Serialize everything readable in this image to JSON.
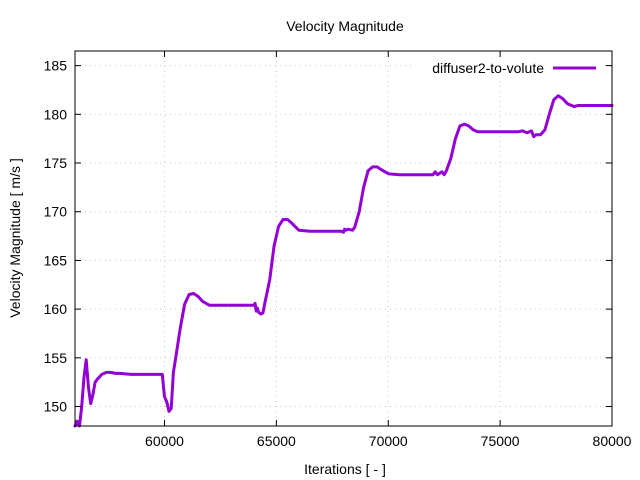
{
  "chart_data": {
    "type": "line",
    "title": "Velocity Magnitude",
    "xlabel": "Iterations [ - ]",
    "ylabel": "Velocity Magnitude [ m/s ]",
    "xlim": [
      56000,
      80000
    ],
    "ylim": [
      148,
      186.5
    ],
    "xticks": [
      60000,
      65000,
      70000,
      75000,
      80000
    ],
    "yticks": [
      150,
      155,
      160,
      165,
      170,
      175,
      180,
      185
    ],
    "grid": true,
    "legend_position": "top-right",
    "series": [
      {
        "name": "diffuser2-to-volute",
        "color": "#9400d3",
        "x": [
          56000,
          56100,
          56200,
          56300,
          56400,
          56500,
          56600,
          56700,
          56800,
          56900,
          57000,
          57200,
          57400,
          57600,
          57800,
          58000,
          58500,
          59000,
          59500,
          59900,
          60000,
          60100,
          60200,
          60300,
          60400,
          60500,
          60700,
          60900,
          61100,
          61300,
          61500,
          61700,
          62000,
          62500,
          63000,
          63500,
          64000,
          64050,
          64100,
          64150,
          64200,
          64300,
          64400,
          64500,
          64700,
          64900,
          65100,
          65300,
          65500,
          65700,
          66000,
          66500,
          67000,
          67500,
          67900,
          68000,
          68050,
          68100,
          68200,
          68400,
          68500,
          68700,
          68900,
          69100,
          69300,
          69500,
          69700,
          70000,
          70500,
          71000,
          71500,
          72000,
          72100,
          72200,
          72400,
          72500,
          72600,
          72800,
          73000,
          73200,
          73400,
          73600,
          73800,
          74000,
          74500,
          75000,
          75500,
          75800,
          76000,
          76200,
          76400,
          76500,
          76600,
          76800,
          77000,
          77200,
          77400,
          77600,
          77800,
          78000,
          78300,
          78500,
          79000,
          79500,
          80000
        ],
        "values": [
          148,
          148.5,
          148,
          150,
          153,
          154.8,
          152,
          150.3,
          151.2,
          152.5,
          152.8,
          153.3,
          153.5,
          153.5,
          153.4,
          153.4,
          153.3,
          153.3,
          153.3,
          153.3,
          151,
          150.5,
          149.5,
          149.8,
          153.5,
          155,
          158,
          160.5,
          161.5,
          161.6,
          161.3,
          160.8,
          160.4,
          160.4,
          160.4,
          160.4,
          160.4,
          160.6,
          159.8,
          160.1,
          159.7,
          159.5,
          159.6,
          160.8,
          163,
          166.5,
          168.5,
          169.2,
          169.2,
          168.8,
          168.1,
          168,
          168,
          168,
          168,
          167.9,
          168.2,
          168.1,
          168.2,
          168.1,
          168.4,
          170,
          172.5,
          174.2,
          174.6,
          174.6,
          174.3,
          173.9,
          173.8,
          173.8,
          173.8,
          173.8,
          174.1,
          173.8,
          174.1,
          173.8,
          174.2,
          175.5,
          177.5,
          178.8,
          179,
          178.8,
          178.4,
          178.2,
          178.2,
          178.2,
          178.2,
          178.2,
          178.3,
          178.1,
          178.3,
          177.7,
          177.9,
          177.9,
          178.4,
          180,
          181.5,
          181.9,
          181.6,
          181.1,
          180.8,
          180.9,
          180.9,
          180.9,
          180.9
        ]
      }
    ]
  }
}
